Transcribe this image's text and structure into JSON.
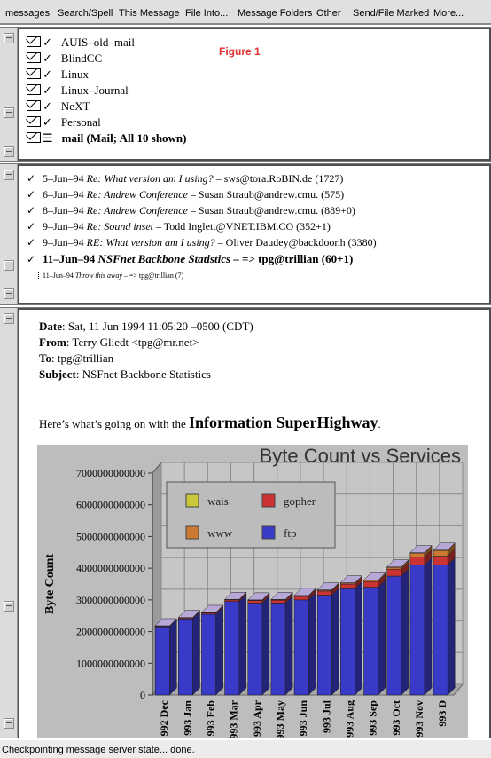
{
  "menu": [
    "messages",
    "Search/Spell",
    "This Message",
    "File Into...",
    "Message Folders",
    "Other",
    "Send/File Marked",
    "More..."
  ],
  "figure_label": "Figure 1",
  "folders": [
    {
      "name": "AUIS–old–mail",
      "bold": false
    },
    {
      "name": "BlindCC",
      "bold": false
    },
    {
      "name": "Linux",
      "bold": false
    },
    {
      "name": "Linux–Journal",
      "bold": false
    },
    {
      "name": "NeXT",
      "bold": false
    },
    {
      "name": "Personal",
      "bold": false
    },
    {
      "name": "mail (Mail; All 10 shown)",
      "bold": true
    }
  ],
  "headers": [
    {
      "date": "5–Jun–94",
      "subject": "Re: What version am I using?",
      "from": "sws@tora.RoBIN.de (1727)",
      "check": "✓"
    },
    {
      "date": "6–Jun–94",
      "subject": "Re: Andrew Conference",
      "from": "Susan Straub@andrew.cmu. (575)",
      "check": "✓"
    },
    {
      "date": "8–Jun–94",
      "subject": "Re: Andrew Conference",
      "from": "Susan Straub@andrew.cmu. (889+0)",
      "check": "✓"
    },
    {
      "date": "9–Jun–94",
      "subject": "Re: Sound inset",
      "from": "Todd Inglett@VNET.IBM.CO (352+1)",
      "check": "✓"
    },
    {
      "date": "9–Jun–94",
      "subject": "RE: What version am I using?",
      "from": "Oliver Daudey@backdoor.h (3380)",
      "check": "✓"
    },
    {
      "date": "11–Jun–94",
      "subject": "NSFnet Backbone Statistics",
      "from": "=> tpg@trillian (60+1)",
      "check": "✓",
      "bold": true
    },
    {
      "date": "11–Jun–94",
      "subject": "Throw this away",
      "from": "=> tpg@trillian (7)",
      "check": "",
      "small": true
    }
  ],
  "message": {
    "date_label": "Date",
    "date": "Sat, 11 Jun 1994 11:05:20 –0500 (CDT)",
    "from_label": "From",
    "from": "Terry Gliedt <tpg@mr.net>",
    "to_label": "To",
    "to": "tpg@trillian",
    "subject_label": "Subject",
    "subject": "NSFnet Backbone Statistics",
    "intro": "Here’s what’s going on with the",
    "highlight": "Information SuperHighway",
    "period": "."
  },
  "chart_data": {
    "type": "bar",
    "title": "Byte Count vs Services",
    "ylabel": "Byte Count",
    "xlabel": "",
    "ylim": [
      0,
      7000000000000
    ],
    "yticks": [
      0,
      1000000000000,
      2000000000000,
      3000000000000,
      4000000000000,
      5000000000000,
      6000000000000,
      7000000000000
    ],
    "categories": [
      "992 Dec",
      "993 Jan",
      "993 Feb",
      "993 Mar",
      "993 Apr",
      "993 May",
      "993 Jun",
      "993 Jul",
      "993 Aug",
      "993 Sep",
      "993 Oct",
      "993 Nov",
      "993 D"
    ],
    "series": [
      {
        "name": "ftp",
        "color": "#3a3ac8",
        "values": [
          2150000000000,
          2400000000000,
          2550000000000,
          2950000000000,
          2900000000000,
          2900000000000,
          3000000000000,
          3150000000000,
          3350000000000,
          3400000000000,
          3750000000000,
          4100000000000,
          4100000000000
        ]
      },
      {
        "name": "gopher",
        "color": "#cc3333",
        "values": [
          20000000000,
          30000000000,
          40000000000,
          50000000000,
          80000000000,
          90000000000,
          110000000000,
          130000000000,
          150000000000,
          180000000000,
          220000000000,
          260000000000,
          280000000000
        ]
      },
      {
        "name": "www",
        "color": "#cc7a33",
        "values": [
          10000000000,
          10000000000,
          10000000000,
          10000000000,
          15000000000,
          20000000000,
          25000000000,
          30000000000,
          35000000000,
          40000000000,
          60000000000,
          120000000000,
          180000000000
        ]
      },
      {
        "name": "wais",
        "color": "#c8c83a",
        "values": [
          5000000000,
          5000000000,
          5000000000,
          5000000000,
          5000000000,
          5000000000,
          5000000000,
          5000000000,
          5000000000,
          5000000000,
          10000000000,
          10000000000,
          10000000000
        ]
      }
    ],
    "legend": [
      {
        "name": "wais",
        "color": "#c8c83a"
      },
      {
        "name": "gopher",
        "color": "#cc3333"
      },
      {
        "name": "www",
        "color": "#cc7a33"
      },
      {
        "name": "ftp",
        "color": "#3a3ac8"
      }
    ],
    "legend_position": "top-left",
    "grid": true,
    "top_color": "#b8a8d8"
  },
  "status": "Checkpointing message server state... done."
}
